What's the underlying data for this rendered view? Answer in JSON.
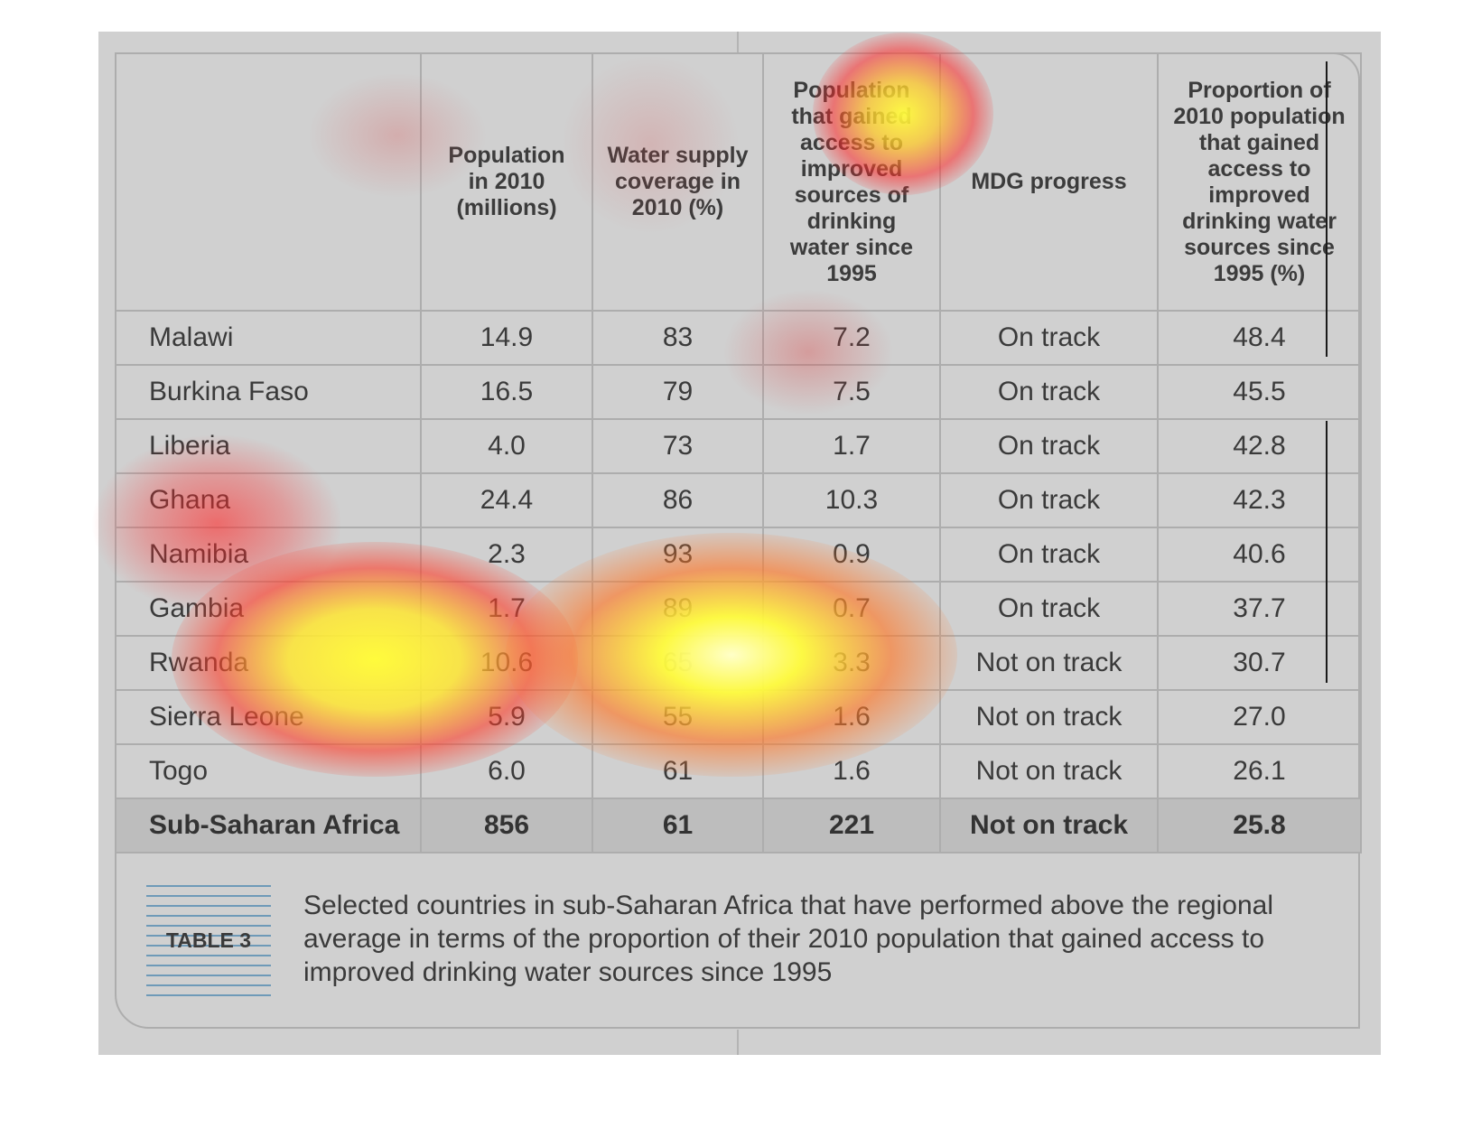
{
  "table": {
    "headers": [
      "",
      "Population in 2010 (millions)",
      "Water supply coverage in 2010 (%)",
      "Population that gained access to improved sources of drinking water since 1995",
      "MDG progress",
      "Proportion of 2010 population that gained access to improved drinking water sources since 1995 (%)"
    ],
    "rows": [
      {
        "country": "Malawi",
        "population": "14.9",
        "coverage": "83",
        "gained": "7.2",
        "mdg": "On track",
        "proportion": "48.4"
      },
      {
        "country": "Burkina Faso",
        "population": "16.5",
        "coverage": "79",
        "gained": "7.5",
        "mdg": "On track",
        "proportion": "45.5"
      },
      {
        "country": "Liberia",
        "population": "4.0",
        "coverage": "73",
        "gained": "1.7",
        "mdg": "On track",
        "proportion": "42.8"
      },
      {
        "country": "Ghana",
        "population": "24.4",
        "coverage": "86",
        "gained": "10.3",
        "mdg": "On track",
        "proportion": "42.3"
      },
      {
        "country": "Namibia",
        "population": "2.3",
        "coverage": "93",
        "gained": "0.9",
        "mdg": "On track",
        "proportion": "40.6"
      },
      {
        "country": "Gambia",
        "population": "1.7",
        "coverage": "89",
        "gained": "0.7",
        "mdg": "On track",
        "proportion": "37.7"
      },
      {
        "country": "Rwanda",
        "population": "10.6",
        "coverage": "65",
        "gained": "3.3",
        "mdg": "Not on track",
        "proportion": "30.7"
      },
      {
        "country": "Sierra Leone",
        "population": "5.9",
        "coverage": "55",
        "gained": "1.6",
        "mdg": "Not on track",
        "proportion": "27.0"
      },
      {
        "country": "Togo",
        "population": "6.0",
        "coverage": "61",
        "gained": "1.6",
        "mdg": "Not on track",
        "proportion": "26.1"
      }
    ],
    "total": {
      "country": "Sub-Saharan Africa",
      "population": "856",
      "coverage": "61",
      "gained": "221",
      "mdg": "Not on track",
      "proportion": "25.8"
    }
  },
  "caption": {
    "tag": "TABLE 3",
    "text": "Selected countries in sub-Saharan Africa that have performed above the regional average in terms of the proportion of their 2010 population that gained access to improved drinking water sources since 1995"
  },
  "colors": {
    "panel": "#d0d0d0",
    "grid": "#adadad",
    "total_row": "#bdbdbd",
    "caption_lines": "#6e9ab8",
    "heat_hot": "#fffb3c",
    "heat_warm": "#ff2a2a"
  }
}
